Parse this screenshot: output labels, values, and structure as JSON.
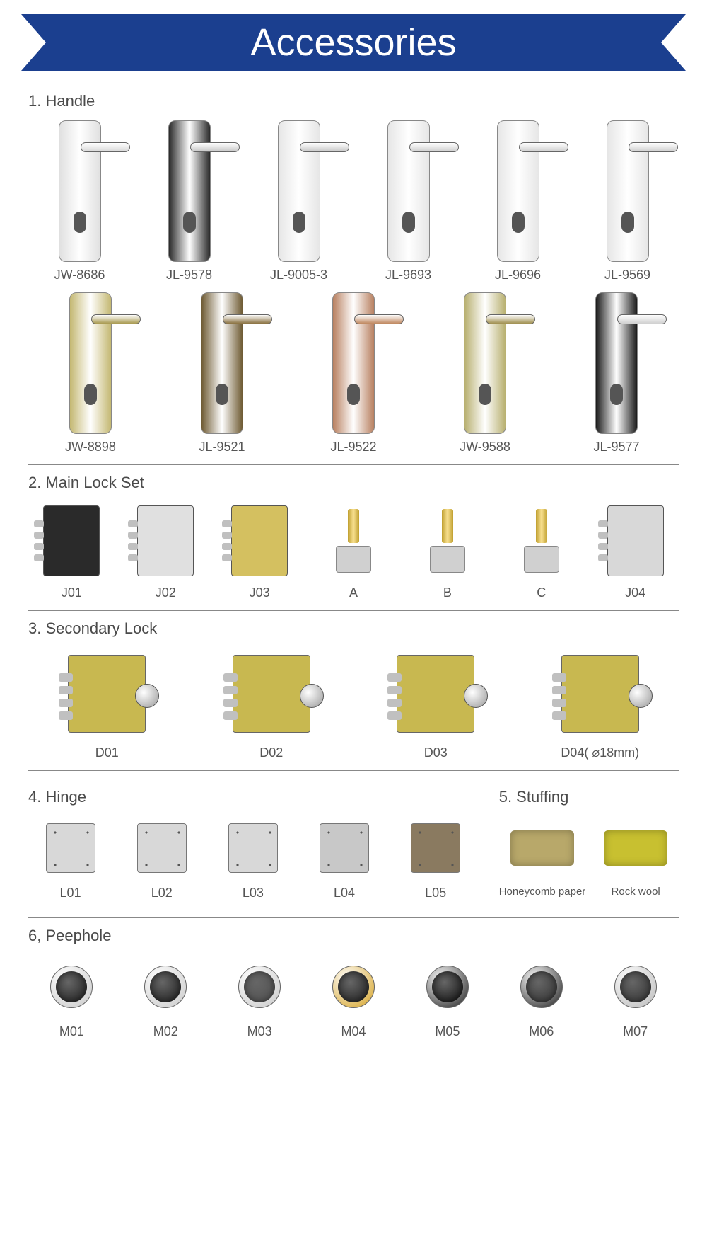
{
  "banner": {
    "title": "Accessories",
    "bg_color": "#1b3f8f",
    "text_color": "#ffffff"
  },
  "sections": {
    "handle": {
      "title": "1. Handle",
      "row1": [
        {
          "label": "JW-8686",
          "plate": "#e0e0e0",
          "lever": "#d8d8d8"
        },
        {
          "label": "JL-9578",
          "plate": "#2a2a2a",
          "lever": "#c8c8c8"
        },
        {
          "label": "JL-9005-3",
          "plate": "#e6e6e6",
          "lever": "#c8c8c8"
        },
        {
          "label": "JL-9693",
          "plate": "#e6e6e6",
          "lever": "#cfcfcf"
        },
        {
          "label": "JL-9696",
          "plate": "#e6e6e6",
          "lever": "#cfcfcf"
        },
        {
          "label": "JL-9569",
          "plate": "#e6e6e6",
          "lever": "#cfcfcf"
        }
      ],
      "row2": [
        {
          "label": "JW-8898",
          "plate": "#c4b872",
          "lever": "#a89a50"
        },
        {
          "label": "JL-9521",
          "plate": "#6e5a32",
          "lever": "#8a7140"
        },
        {
          "label": "JL-9522",
          "plate": "#b88060",
          "lever": "#c08860"
        },
        {
          "label": "JW-9588",
          "plate": "#b8b070",
          "lever": "#a09050"
        },
        {
          "label": "JL-9577",
          "plate": "#1a1a1a",
          "lever": "#d0d0d0"
        }
      ]
    },
    "mainlock": {
      "title": "2. Main Lock Set",
      "items": [
        {
          "label": "J01",
          "color": "#2a2a2a",
          "kind": "box"
        },
        {
          "label": "J02",
          "color": "#e0e0e0",
          "kind": "box"
        },
        {
          "label": "J03",
          "color": "#d4c060",
          "kind": "box"
        },
        {
          "label": "A",
          "color": "#c0a030",
          "kind": "cyl"
        },
        {
          "label": "B",
          "color": "#c0a030",
          "kind": "cyl"
        },
        {
          "label": "C",
          "color": "#c0a030",
          "kind": "cyl"
        },
        {
          "label": "J04",
          "color": "#d8d8d8",
          "kind": "box"
        }
      ]
    },
    "secondarylock": {
      "title": "3. Secondary Lock",
      "items": [
        {
          "label": "D01",
          "color": "#c8b850"
        },
        {
          "label": "D02",
          "color": "#c8b850"
        },
        {
          "label": "D03",
          "color": "#c8b850"
        },
        {
          "label": "D04( ⌀18mm)",
          "color": "#c8b850"
        }
      ]
    },
    "hinge": {
      "title": "4. Hinge",
      "items": [
        {
          "label": "L01",
          "color": "#d8d8d8"
        },
        {
          "label": "L02",
          "color": "#d8d8d8"
        },
        {
          "label": "L03",
          "color": "#d8d8d8"
        },
        {
          "label": "L04",
          "color": "#c8c8c8"
        },
        {
          "label": "L05",
          "color": "#8a7a60"
        }
      ]
    },
    "stuffing": {
      "title": "5. Stuffing",
      "items": [
        {
          "label": "Honeycomb paper",
          "color": "#b8a86a"
        },
        {
          "label": "Rock wool",
          "color": "#c8c030"
        }
      ]
    },
    "peephole": {
      "title": "6, Peephole",
      "items": [
        {
          "label": "M01",
          "body": "#c8c8c8",
          "lens": "#1a1a1a"
        },
        {
          "label": "M02",
          "body": "#c8c8c8",
          "lens": "#1a1a1a"
        },
        {
          "label": "M03",
          "body": "#c8c8c8",
          "lens": "#505050"
        },
        {
          "label": "M04",
          "body": "#d4a020",
          "lens": "#1a1a1a"
        },
        {
          "label": "M05",
          "body": "#1a1a1a",
          "lens": "#0a0a0a"
        },
        {
          "label": "M06",
          "body": "#1a1a1a",
          "lens": "#303030"
        },
        {
          "label": "M07",
          "body": "#b8b8b8",
          "lens": "#303030"
        }
      ]
    }
  }
}
